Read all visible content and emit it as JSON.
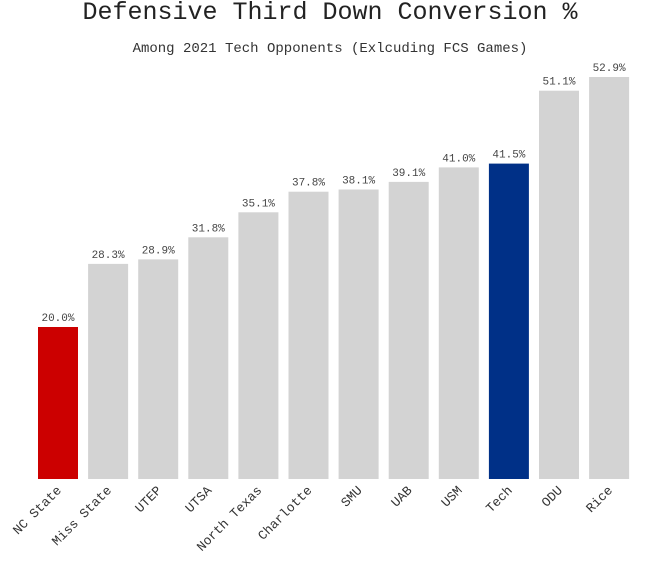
{
  "chart_data": {
    "type": "bar",
    "title": "Defensive Third Down Conversion %",
    "subtitle": "Among 2021 Tech Opponents (Exlcuding FCS Games)",
    "categories": [
      "NC State",
      "Miss State",
      "UTEP",
      "UTSA",
      "North Texas",
      "Charlotte",
      "SMU",
      "UAB",
      "USM",
      "Tech",
      "ODU",
      "Rice"
    ],
    "values": [
      20.0,
      28.3,
      28.9,
      31.8,
      35.1,
      37.8,
      38.1,
      39.1,
      41.0,
      41.5,
      51.1,
      52.9
    ],
    "value_labels": [
      "20.0%",
      "28.3%",
      "28.9%",
      "31.8%",
      "35.1%",
      "37.8%",
      "38.1%",
      "39.1%",
      "41.0%",
      "41.5%",
      "51.1%",
      "52.9%"
    ],
    "colors": [
      "#cc0000",
      "#d3d3d3",
      "#d3d3d3",
      "#d3d3d3",
      "#d3d3d3",
      "#d3d3d3",
      "#d3d3d3",
      "#d3d3d3",
      "#d3d3d3",
      "#003087",
      "#d3d3d3",
      "#d3d3d3"
    ],
    "xlabel": "",
    "ylabel": "",
    "ylim": [
      0,
      52.9
    ],
    "grid": false,
    "legend": "none"
  }
}
